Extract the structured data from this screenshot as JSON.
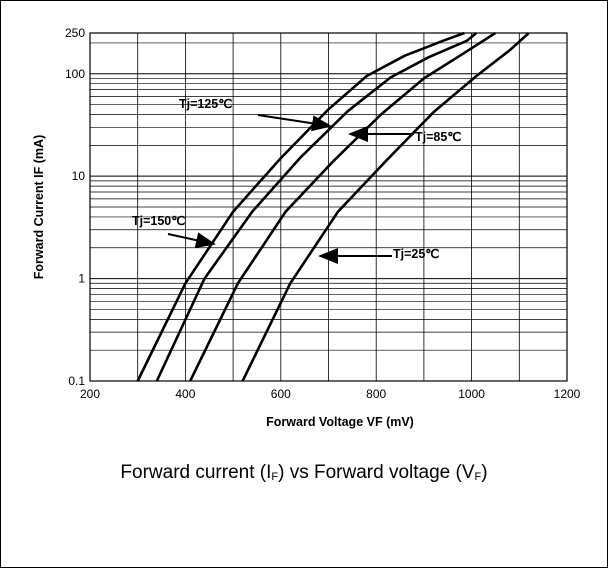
{
  "chart_data": {
    "type": "line",
    "xlabel": "Forward Voltage VF (mV)",
    "ylabel": "Forward Current  IF (mA)",
    "xlim": [
      200,
      1200
    ],
    "ylim": [
      0.1,
      250
    ],
    "yscale": "log",
    "grid": true,
    "x_ticks": [
      "200",
      "400",
      "600",
      "800",
      "1000",
      "1200"
    ],
    "y_ticks": [
      "0.1",
      "1",
      "10",
      "100",
      "250"
    ],
    "series": [
      {
        "name": "Tj=150℃",
        "x": [
          300,
          400,
          500,
          600,
          700,
          780,
          860,
          940,
          985
        ],
        "y": [
          0.1,
          0.9,
          4.5,
          15,
          45,
          95,
          150,
          210,
          250
        ]
      },
      {
        "name": "Tj=125℃",
        "x": [
          340,
          440,
          540,
          640,
          740,
          830,
          910,
          990,
          1010
        ],
        "y": [
          0.1,
          1.0,
          4.5,
          15,
          43,
          92,
          145,
          210,
          250
        ]
      },
      {
        "name": "Tj=85℃",
        "x": [
          410,
          510,
          610,
          710,
          810,
          900,
          980,
          1050
        ],
        "y": [
          0.1,
          0.9,
          4.5,
          14,
          40,
          90,
          155,
          250
        ]
      },
      {
        "name": "Tj=25℃",
        "x": [
          520,
          620,
          720,
          820,
          920,
          1010,
          1080,
          1120
        ],
        "y": [
          0.1,
          0.9,
          4.5,
          14,
          42,
          95,
          170,
          250
        ]
      }
    ],
    "annotations": [
      {
        "text": "Tj=125℃"
      },
      {
        "text": "Tj=85℃"
      },
      {
        "text": "Tj=150℃"
      },
      {
        "text": "Tj=25℃"
      }
    ]
  },
  "caption": {
    "part1": "Forward current (I",
    "sub1": "F",
    "part2": ") vs Forward voltage (V",
    "sub2": "F",
    "part3": ")"
  }
}
